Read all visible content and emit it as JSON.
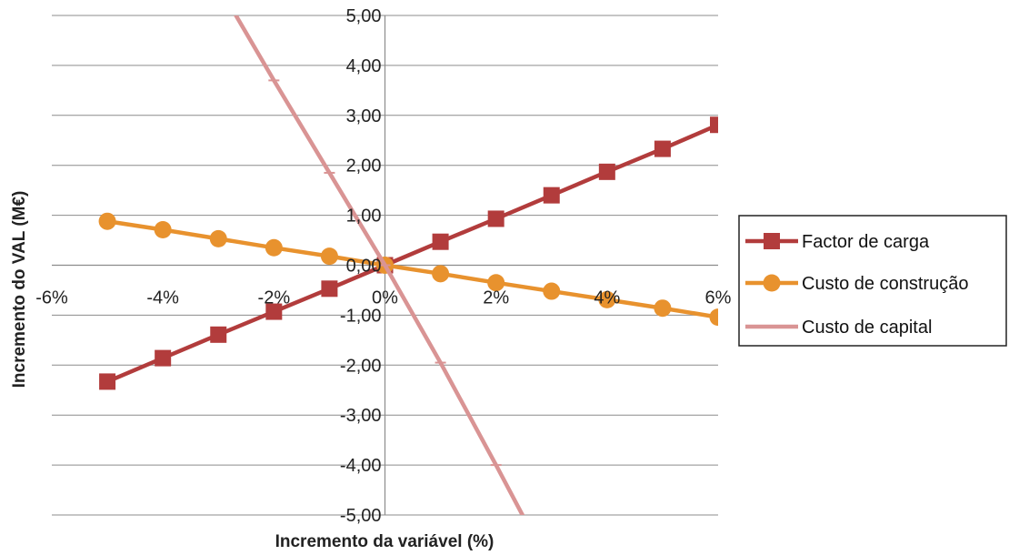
{
  "chart_data": {
    "type": "line",
    "title": "",
    "xlabel": "Incremento da variável (%)",
    "ylabel": "Incremento do VAL (M€)",
    "xlim": [
      -6,
      6
    ],
    "ylim": [
      -5,
      5
    ],
    "x_ticks": [
      "-6%",
      "-4%",
      "-2%",
      "0%",
      "2%",
      "4%",
      "6%"
    ],
    "x_tick_values": [
      -6,
      -4,
      -2,
      0,
      2,
      4,
      6
    ],
    "y_ticks": [
      "5,00",
      "4,00",
      "3,00",
      "2,00",
      "1,00",
      "0,00",
      "-1,00",
      "-2,00",
      "-3,00",
      "-4,00",
      "-5,00"
    ],
    "y_tick_values": [
      5,
      4,
      3,
      2,
      1,
      0,
      -1,
      -2,
      -3,
      -4,
      -5
    ],
    "grid": "horizontal",
    "legend_position": "right",
    "series": [
      {
        "name": "Factor de carga",
        "color": "#b23c3c",
        "marker": "square",
        "x": [
          -5,
          -4,
          -3,
          -2,
          -1,
          0,
          1,
          2,
          3,
          4,
          5,
          6
        ],
        "y": [
          -2.33,
          -1.86,
          -1.39,
          -0.93,
          -0.47,
          0.0,
          0.47,
          0.93,
          1.4,
          1.87,
          2.33,
          2.81
        ]
      },
      {
        "name": "Custo de construção",
        "color": "#e8922e",
        "marker": "circle",
        "x": [
          -5,
          -4,
          -3,
          -2,
          -1,
          0,
          1,
          2,
          3,
          4,
          5,
          6
        ],
        "y": [
          0.88,
          0.71,
          0.53,
          0.35,
          0.18,
          0.0,
          -0.17,
          -0.35,
          -0.52,
          -0.69,
          -0.86,
          -1.04
        ]
      },
      {
        "name": "Custo de capital",
        "color": "#d99494",
        "marker": "dash",
        "x": [
          -3,
          -2,
          -1,
          0,
          1,
          2,
          3
        ],
        "y": [
          5.6,
          3.7,
          1.85,
          0.0,
          -1.95,
          -4.0,
          -6.1
        ]
      }
    ]
  }
}
